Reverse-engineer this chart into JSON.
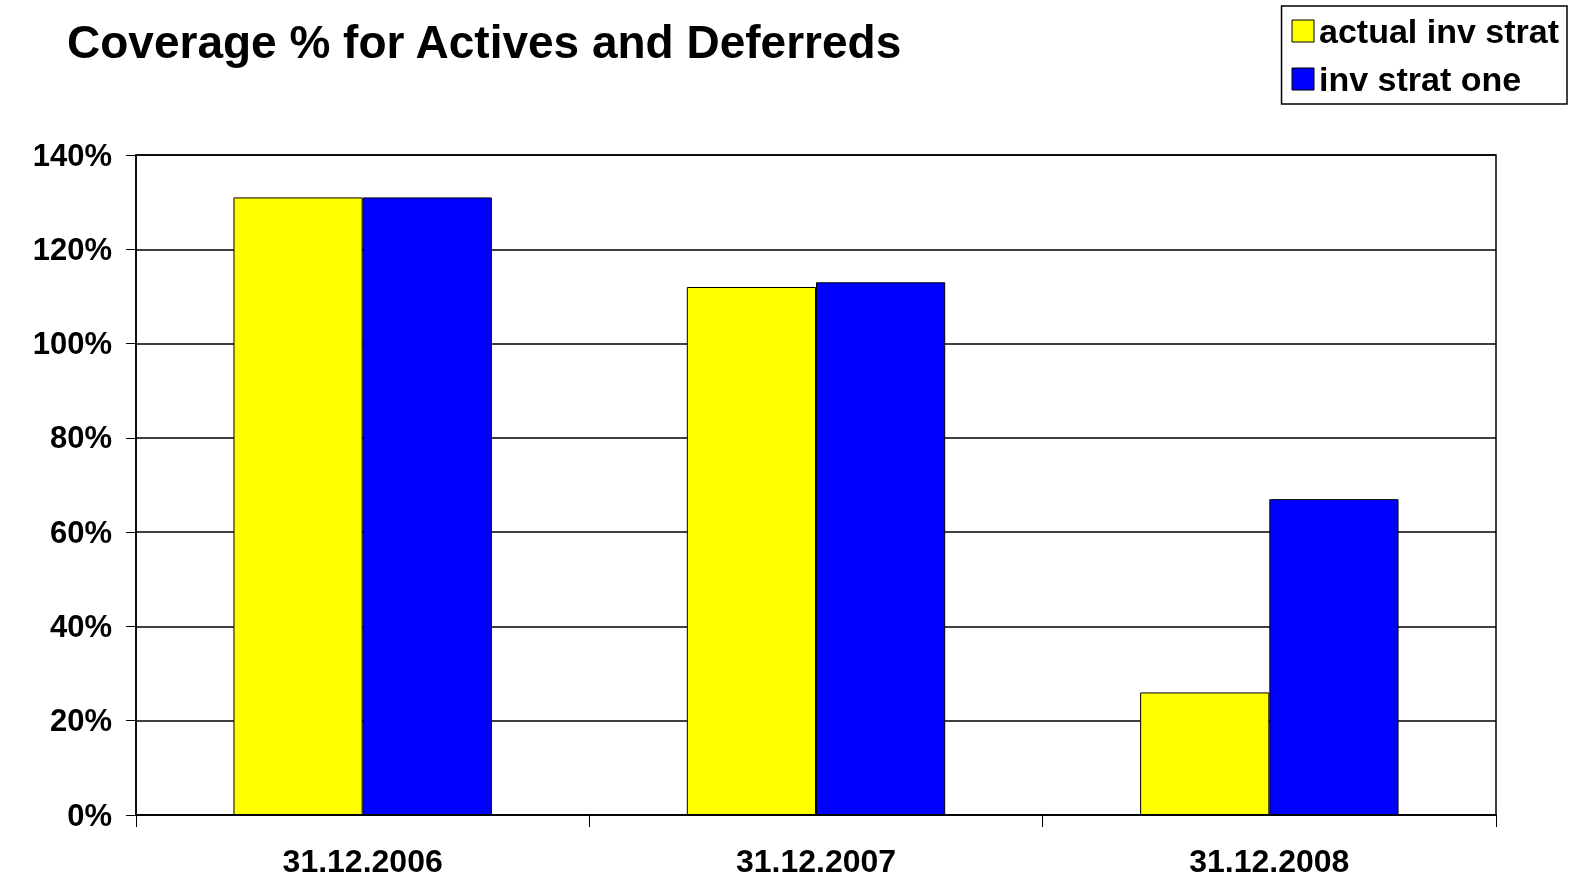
{
  "chart_data": {
    "type": "bar",
    "title": "Coverage % for Actives and Deferreds",
    "categories": [
      "31.12.2006",
      "31.12.2007",
      "31.12.2008"
    ],
    "series": [
      {
        "name": "actual inv strat",
        "color": "#ffff00",
        "values": [
          131,
          112,
          26
        ]
      },
      {
        "name": "inv strat one",
        "color": "#0000ff",
        "values": [
          131,
          113,
          67
        ]
      }
    ],
    "ylim": [
      0,
      140
    ],
    "yticks": [
      {
        "value": 0,
        "label": "0%"
      },
      {
        "value": 20,
        "label": "20%"
      },
      {
        "value": 40,
        "label": "40%"
      },
      {
        "value": 60,
        "label": "60%"
      },
      {
        "value": 80,
        "label": "80%"
      },
      {
        "value": 100,
        "label": "100%"
      },
      {
        "value": 120,
        "label": "120%"
      },
      {
        "value": 140,
        "label": "140%"
      }
    ],
    "grid": "y",
    "legend": "top right"
  }
}
